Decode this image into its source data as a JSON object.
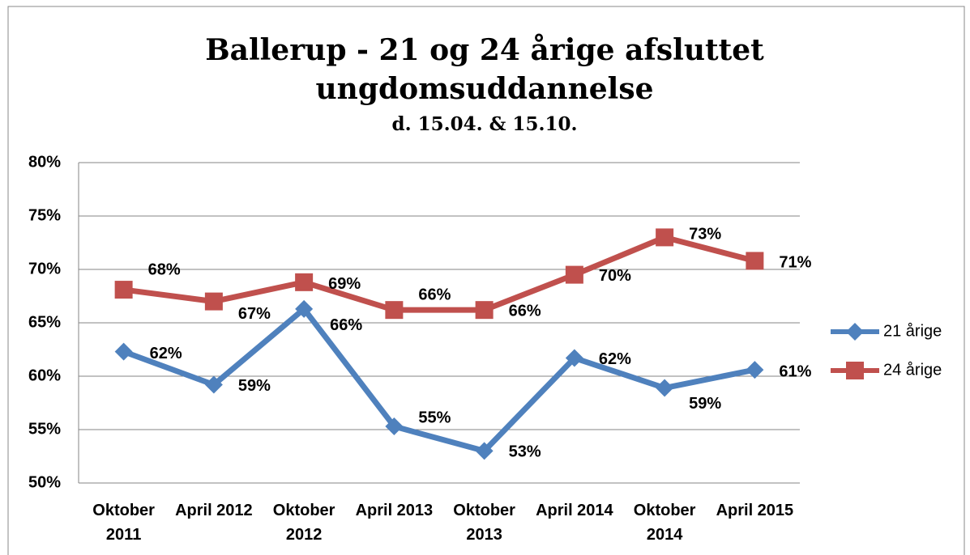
{
  "chart_data": {
    "type": "line",
    "title": "Ballerup - 21 og 24 årige afsluttet ungdomsuddannelse",
    "subtitle": "d. 15.04. & 15.10.",
    "categories": [
      "Oktober 2011",
      "April 2012",
      "Oktober 2012",
      "April 2013",
      "Oktober 2013",
      "April 2014",
      "Oktober 2014",
      "April 2015"
    ],
    "series": [
      {
        "name": "21 årige",
        "color": "#4f81bd",
        "marker": "diamond",
        "values": [
          62.3,
          59.2,
          66.3,
          55.3,
          53.0,
          61.7,
          58.9,
          60.6
        ],
        "value_labels": [
          "62%",
          "59%",
          "66%",
          "55%",
          "53%",
          "62%",
          "59%",
          "61%"
        ]
      },
      {
        "name": "24 årige",
        "color": "#c0504d",
        "marker": "square",
        "values": [
          68.1,
          67.0,
          68.8,
          66.2,
          66.2,
          69.5,
          73.0,
          70.8
        ],
        "value_labels": [
          "68%",
          "67%",
          "69%",
          "66%",
          "66%",
          "70%",
          "73%",
          "71%"
        ]
      }
    ],
    "ylim": [
      50,
      80
    ],
    "yticks": [
      {
        "value": 50,
        "label": "50%"
      },
      {
        "value": 55,
        "label": "55%"
      },
      {
        "value": 60,
        "label": "60%"
      },
      {
        "value": 65,
        "label": "65%"
      },
      {
        "value": 70,
        "label": "70%"
      },
      {
        "value": 75,
        "label": "75%"
      },
      {
        "value": 80,
        "label": "80%"
      }
    ],
    "grid": true,
    "legend": "right"
  }
}
